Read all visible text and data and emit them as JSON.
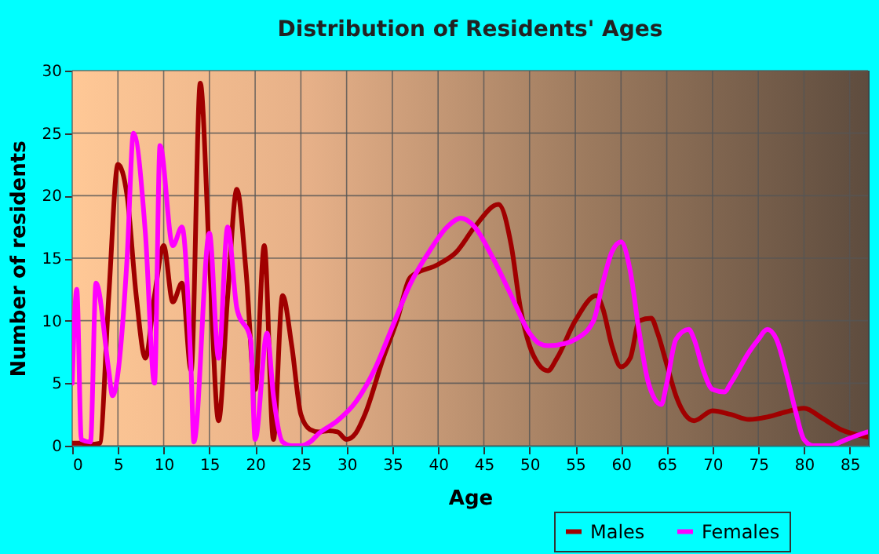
{
  "chart_data": {
    "type": "line",
    "title": "Distribution of Residents' Ages",
    "xlabel": "Age",
    "ylabel": "Number of residents",
    "xlim": [
      0,
      87
    ],
    "xticks": [
      0,
      5,
      10,
      15,
      20,
      25,
      30,
      35,
      40,
      45,
      50,
      55,
      60,
      65,
      70,
      75,
      80,
      85
    ],
    "ylim": [
      0,
      30
    ],
    "yticks": [
      0,
      5,
      10,
      15,
      20,
      25,
      30
    ],
    "grid": true,
    "legend": "bottom right",
    "marker": "none",
    "line_style": "solid",
    "series": [
      {
        "name": "Males",
        "color": "#a00000",
        "x": [
          0,
          1,
          2,
          3,
          4,
          5,
          6,
          7,
          8,
          9,
          10,
          11,
          12,
          13,
          14,
          15,
          16,
          17,
          18,
          19,
          20,
          21,
          22,
          23,
          24,
          25,
          26,
          27,
          28,
          29,
          30,
          31,
          32,
          34,
          35.5,
          37,
          40,
          42,
          44,
          46.6,
          48,
          49,
          50,
          51,
          52,
          53,
          55,
          57.3,
          58,
          59,
          60,
          61,
          62,
          63.3,
          64,
          65,
          66,
          67,
          68,
          70,
          72,
          74,
          76,
          78,
          80,
          82,
          84,
          86.9
        ],
        "values": [
          0.2,
          0.2,
          0.1,
          0.2,
          12,
          22.5,
          20,
          12,
          7,
          12,
          16,
          11.5,
          13,
          6,
          29,
          15,
          2,
          12,
          20.5,
          14,
          4.5,
          16,
          0.5,
          12,
          8,
          2.5,
          1.3,
          1.1,
          1.2,
          1.1,
          0.5,
          1,
          2.5,
          7,
          10,
          13.5,
          14.5,
          15.5,
          17.5,
          19.3,
          16,
          11,
          8,
          6.5,
          6,
          7,
          10,
          12,
          11,
          8,
          6.3,
          7,
          10,
          10.2,
          9,
          6.5,
          4,
          2.5,
          2,
          2.8,
          2.5,
          2.1,
          2.3,
          2.7,
          3,
          2.2,
          1.3,
          0.7
        ]
      },
      {
        "name": "Females",
        "color": "#ff00ff",
        "x": [
          0,
          0.5,
          1,
          2,
          2.6,
          4,
          4.4,
          6,
          6.7,
          8,
          9,
          9.6,
          11,
          12,
          13,
          13.3,
          15,
          16,
          17,
          18,
          19.5,
          20,
          21.3,
          22,
          23,
          24,
          25,
          26,
          27,
          29,
          31,
          33,
          35,
          37,
          39,
          41,
          42.5,
          44,
          46,
          48,
          50,
          51,
          52,
          54,
          55,
          57,
          58,
          59,
          60,
          61,
          62,
          63,
          64.4,
          65,
          66,
          67.4,
          68,
          69,
          70,
          71.3,
          72,
          74,
          75,
          76,
          77,
          78,
          79,
          80,
          81,
          83,
          84,
          85,
          86.9
        ],
        "values": [
          5,
          12.5,
          0.5,
          0.3,
          13,
          6,
          4,
          15,
          25,
          17,
          5,
          24,
          16,
          17.5,
          6,
          0.3,
          17,
          7,
          17.5,
          11,
          8.5,
          0.5,
          9,
          4,
          0.3,
          0,
          0,
          0.3,
          1,
          2,
          3.5,
          6,
          9.5,
          13,
          15.5,
          17.5,
          18.2,
          17.5,
          15,
          12,
          9,
          8.2,
          8,
          8.2,
          8.5,
          10,
          13,
          15.5,
          16.3,
          14,
          9,
          5,
          3.3,
          5,
          8.5,
          9.3,
          8.5,
          6,
          4.5,
          4.3,
          5,
          7.5,
          8.5,
          9.3,
          8.5,
          6,
          3,
          0.5,
          0,
          0,
          0.3,
          0.6,
          1.1
        ]
      }
    ]
  }
}
